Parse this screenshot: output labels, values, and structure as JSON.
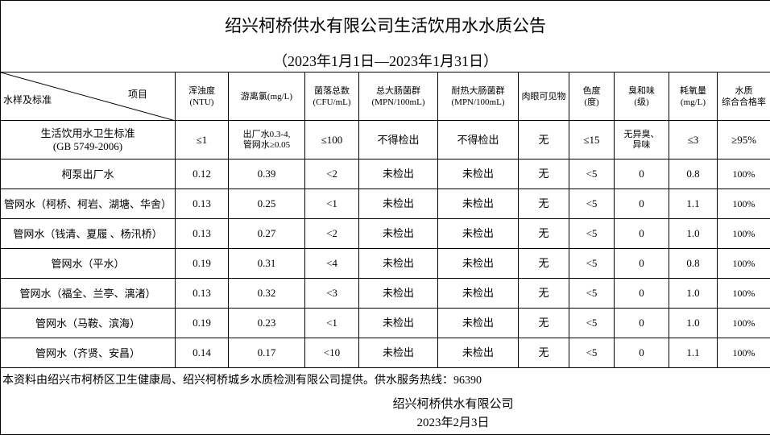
{
  "title": "绍兴柯桥供水有限公司生活饮用水水质公告",
  "subtitle": "（2023年1月1日—2023年1月31日）",
  "header": {
    "corner_left": "水样及标准",
    "corner_right": "项目",
    "columns": [
      "浑浊度\n(NTU)",
      "游离氯(mg/L)",
      "菌落总数\n(CFU/mL)",
      "总大肠菌群\n(MPN/100mL)",
      "耐热大肠菌群\n(MPN/100mL)",
      "肉眼可见物",
      "色度\n(度)",
      "臭和味\n(级)",
      "耗氧量\n(mg/L)",
      "水质\n综合合格率"
    ]
  },
  "standard": {
    "label": "生活饮用水卫生标准\n(GB 5749-2006)",
    "values": [
      "≤1",
      "出厂水0.3-4,\n管网水≥0.05",
      "≤100",
      "不得检出",
      "不得检出",
      "无",
      "≤15",
      "无异臭、\n异味",
      "≤3",
      "≥95%"
    ]
  },
  "rows": [
    {
      "label": "柯泵出厂水",
      "values": [
        "0.12",
        "0.39",
        "<2",
        "未检出",
        "未检出",
        "无",
        "<5",
        "0",
        "0.8",
        "100%"
      ]
    },
    {
      "label": "管网水（柯桥、柯岩、湖塘、华舍）",
      "values": [
        "0.13",
        "0.25",
        "<1",
        "未检出",
        "未检出",
        "无",
        "<5",
        "0",
        "1.1",
        "100%"
      ]
    },
    {
      "label": "管网水（钱清、夏履 、杨汛桥）",
      "values": [
        "0.13",
        "0.27",
        "<2",
        "未检出",
        "未检出",
        "无",
        "<5",
        "0",
        "1.0",
        "100%"
      ]
    },
    {
      "label": "管网水（平水）",
      "values": [
        "0.19",
        "0.31",
        "<4",
        "未检出",
        "未检出",
        "无",
        "<5",
        "0",
        "0.8",
        "100%"
      ]
    },
    {
      "label": "管网水（福全、兰亭、漓渚）",
      "values": [
        "0.13",
        "0.32",
        "<3",
        "未检出",
        "未检出",
        "无",
        "<5",
        "0",
        "1.0",
        "100%"
      ]
    },
    {
      "label": "管网水（马鞍、滨海）",
      "values": [
        "0.19",
        "0.23",
        "<1",
        "未检出",
        "未检出",
        "无",
        "<5",
        "0",
        "1.0",
        "100%"
      ]
    },
    {
      "label": "管网水（齐贤、安昌）",
      "values": [
        "0.14",
        "0.17",
        "<10",
        "未检出",
        "未检出",
        "无",
        "<5",
        "0",
        "1.1",
        "100%"
      ]
    }
  ],
  "footer": {
    "note": "本资料由绍兴市柯桥区卫生健康局、绍兴柯桥城乡水质检测有限公司提供。供水服务热线：96390",
    "company": "绍兴柯桥供水有限公司",
    "date": "2023年2月3日"
  }
}
